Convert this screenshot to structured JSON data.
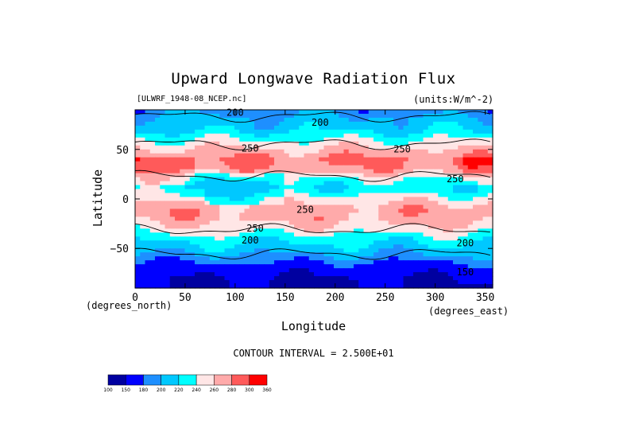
{
  "chart_data": {
    "type": "heatmap",
    "title": "Upward Longwave Radiation Flux",
    "source_label": "[ULWRF_1948-08_NCEP.nc]",
    "units_label": "(units:W/m^-2)",
    "xlabel": "Longitude",
    "ylabel": "Latitude",
    "x_unit_label": "(degrees_east)",
    "y_unit_label": "(degrees_north)",
    "xlim": [
      0,
      357.5
    ],
    "ylim": [
      -90,
      90
    ],
    "x_ticks": [
      0,
      50,
      100,
      150,
      200,
      250,
      300,
      350
    ],
    "y_ticks": [
      50,
      0,
      -50
    ],
    "y_tick_labels": [
      "50",
      "0",
      "−50"
    ],
    "contour_interval_text": "CONTOUR INTERVAL = 2.500E+01",
    "contour_labels": [
      "200",
      "200",
      "250",
      "250",
      "250",
      "250",
      "250",
      "200",
      "200",
      "150"
    ],
    "colorbar": {
      "levels": [
        100,
        150,
        180,
        200,
        220,
        240,
        260,
        280,
        300,
        360
      ],
      "tick_labels": [
        "100",
        "150",
        "180",
        "200",
        "220",
        "240",
        "260",
        "280",
        "300",
        "360"
      ],
      "colors": [
        "#0000a0",
        "#0000ff",
        "#1e8fff",
        "#00c8ff",
        "#00ffff",
        "#ffe6e6",
        "#ffaaaa",
        "#ff5a5a",
        "#ff0000"
      ]
    },
    "zonal_profile": [
      {
        "lat": 90,
        "value": 190
      },
      {
        "lat": 80,
        "value": 205
      },
      {
        "lat": 70,
        "value": 215
      },
      {
        "lat": 60,
        "value": 240
      },
      {
        "lat": 50,
        "value": 262
      },
      {
        "lat": 40,
        "value": 282
      },
      {
        "lat": 30,
        "value": 275
      },
      {
        "lat": 20,
        "value": 238
      },
      {
        "lat": 10,
        "value": 225
      },
      {
        "lat": 0,
        "value": 250
      },
      {
        "lat": -10,
        "value": 272
      },
      {
        "lat": -20,
        "value": 268
      },
      {
        "lat": -30,
        "value": 252
      },
      {
        "lat": -40,
        "value": 228
      },
      {
        "lat": -50,
        "value": 212
      },
      {
        "lat": -60,
        "value": 190
      },
      {
        "lat": -70,
        "value": 165
      },
      {
        "lat": -80,
        "value": 150
      },
      {
        "lat": -90,
        "value": 145
      }
    ]
  }
}
